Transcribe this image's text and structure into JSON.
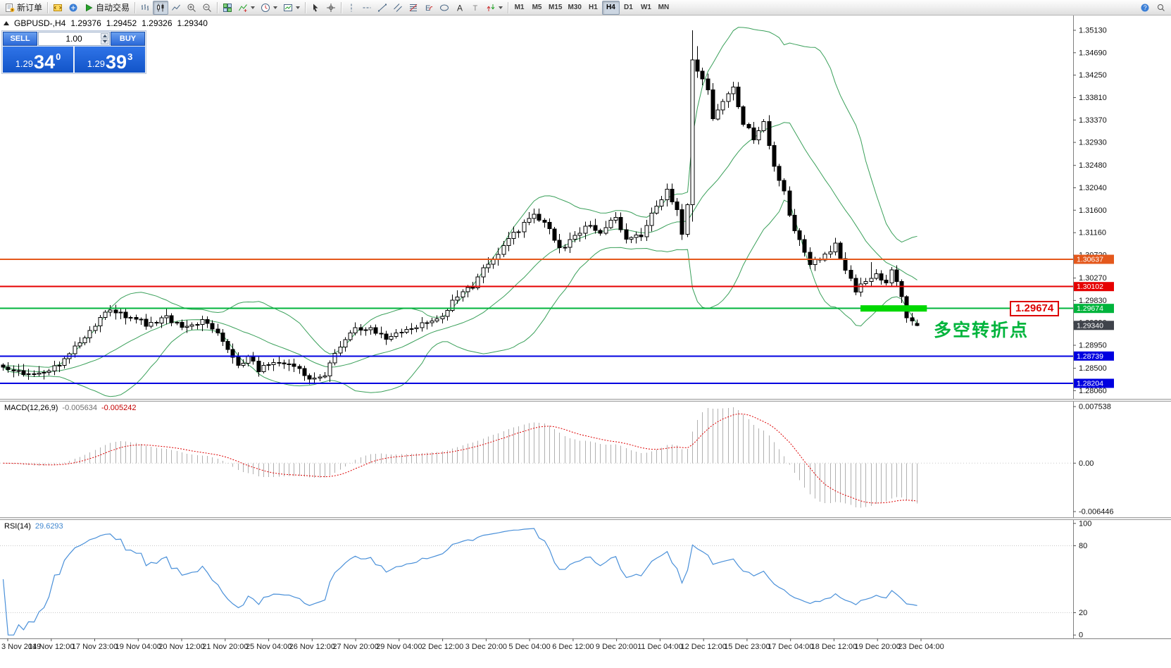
{
  "toolbar": {
    "groups": [
      {
        "items": [
          {
            "name": "new-order-button",
            "icon": "new-order-icon",
            "label": "新订单"
          }
        ]
      },
      {
        "items": [
          {
            "name": "metaeditor-button",
            "icon": "metaeditor-icon"
          },
          {
            "name": "market-button",
            "icon": "market-icon"
          },
          {
            "name": "autotrading-button",
            "icon": "autotrading-icon",
            "label": "自动交易"
          }
        ]
      },
      {
        "items": [
          {
            "name": "bars-mode-button",
            "icon": "bars-chart-icon"
          },
          {
            "name": "candles-mode-button",
            "icon": "candles-chart-icon",
            "active": true
          },
          {
            "name": "line-mode-button",
            "icon": "line-chart-icon"
          },
          {
            "name": "zoom-in-button",
            "icon": "zoom-in-icon"
          },
          {
            "name": "zoom-out-button",
            "icon": "zoom-out-icon"
          }
        ]
      },
      {
        "items": [
          {
            "name": "tile-windows-button",
            "icon": "tile-windows-icon"
          },
          {
            "name": "indicators-button",
            "icon": "indicators-icon",
            "dropdown": true
          },
          {
            "name": "periods-button",
            "icon": "periods-icon",
            "dropdown": true
          },
          {
            "name": "templates-button",
            "icon": "templates-icon",
            "dropdown": true
          }
        ]
      },
      {
        "items": [
          {
            "name": "cursor-button",
            "icon": "cursor-icon"
          },
          {
            "name": "crosshair-button",
            "icon": "crosshair-icon"
          }
        ]
      },
      {
        "items": [
          {
            "name": "vertical-line-button",
            "icon": "vertical-line-icon"
          },
          {
            "name": "horizontal-line-button",
            "icon": "horizontal-line-icon"
          },
          {
            "name": "trendline-button",
            "icon": "trendline-icon"
          },
          {
            "name": "channel-button",
            "icon": "channel-icon"
          },
          {
            "name": "fibonacci-button",
            "icon": "fibonacci-icon"
          },
          {
            "name": "elliott-wave-button",
            "icon": "elliott-icon"
          },
          {
            "name": "shapes-button",
            "icon": "shapes-icon"
          },
          {
            "name": "text-button",
            "icon": "text-icon"
          },
          {
            "name": "label-button",
            "icon": "label-icon"
          },
          {
            "name": "arrows-button",
            "icon": "arrows-icon",
            "dropdown": true
          }
        ]
      },
      {
        "items": [
          {
            "name": "tf-m1-button",
            "tf": "M1"
          },
          {
            "name": "tf-m5-button",
            "tf": "M5"
          },
          {
            "name": "tf-m15-button",
            "tf": "M15"
          },
          {
            "name": "tf-m30-button",
            "tf": "M30"
          },
          {
            "name": "tf-h1-button",
            "tf": "H1"
          },
          {
            "name": "tf-h4-button",
            "tf": "H4",
            "active": true
          },
          {
            "name": "tf-d1-button",
            "tf": "D1"
          },
          {
            "name": "tf-w1-button",
            "tf": "W1"
          },
          {
            "name": "tf-mn-button",
            "tf": "MN"
          }
        ]
      }
    ],
    "right_items": [
      {
        "name": "help-button",
        "icon": "help-icon"
      },
      {
        "name": "search-button",
        "icon": "search-icon"
      }
    ]
  },
  "symbol_bar": {
    "title": "GBPUSD-,H4",
    "open": "1.29376",
    "high": "1.29452",
    "low": "1.29326",
    "close": "1.29340"
  },
  "trade_panel": {
    "sell_label": "SELL",
    "buy_label": "BUY",
    "volume": "1.00",
    "bid_prefix": "1.29",
    "bid_big": "34",
    "bid_sup": "0",
    "ask_prefix": "1.29",
    "ask_big": "39",
    "ask_sup": "3"
  },
  "annotation": {
    "callout": "1.29674",
    "note": "多空转折点",
    "note_color": "#00b43c"
  },
  "chart_data": {
    "type": "candlestick",
    "title": "GBPUSD-,H4",
    "bars": 180,
    "noise": 0.0011,
    "waypoints": [
      [
        0,
        1.2853
      ],
      [
        3,
        1.2843
      ],
      [
        7,
        1.2836
      ],
      [
        11,
        1.286
      ],
      [
        14,
        1.2892
      ],
      [
        18,
        1.2934
      ],
      [
        21,
        1.2966
      ],
      [
        24,
        1.295
      ],
      [
        28,
        1.2938
      ],
      [
        32,
        1.2948
      ],
      [
        36,
        1.2928
      ],
      [
        39,
        1.2946
      ],
      [
        43,
        1.2904
      ],
      [
        46,
        1.2852
      ],
      [
        48,
        1.2872
      ],
      [
        50,
        1.2848
      ],
      [
        54,
        1.2864
      ],
      [
        58,
        1.2846
      ],
      [
        61,
        1.2826
      ],
      [
        63,
        1.284
      ],
      [
        65,
        1.2882
      ],
      [
        68,
        1.2922
      ],
      [
        72,
        1.2932
      ],
      [
        75,
        1.2906
      ],
      [
        78,
        1.2922
      ],
      [
        81,
        1.293
      ],
      [
        86,
        1.2956
      ],
      [
        89,
        1.2992
      ],
      [
        92,
        1.3012
      ],
      [
        94,
        1.3042
      ],
      [
        97,
        1.3072
      ],
      [
        99,
        1.3102
      ],
      [
        102,
        1.3132
      ],
      [
        104,
        1.3156
      ],
      [
        107,
        1.3118
      ],
      [
        109,
        1.3082
      ],
      [
        112,
        1.3108
      ],
      [
        114,
        1.3132
      ],
      [
        117,
        1.3118
      ],
      [
        120,
        1.3146
      ],
      [
        122,
        1.3106
      ],
      [
        125,
        1.3112
      ],
      [
        127,
        1.3152
      ],
      [
        130,
        1.32
      ],
      [
        132,
        1.3156
      ],
      [
        133,
        1.311
      ],
      [
        134,
        1.3172
      ],
      [
        135,
        1.346
      ],
      [
        136,
        1.3438
      ],
      [
        138,
        1.3392
      ],
      [
        139,
        1.3342
      ],
      [
        141,
        1.3372
      ],
      [
        143,
        1.3405
      ],
      [
        145,
        1.3332
      ],
      [
        147,
        1.3302
      ],
      [
        149,
        1.3332
      ],
      [
        151,
        1.3242
      ],
      [
        153,
        1.3195
      ],
      [
        154,
        1.3152
      ],
      [
        156,
        1.3098
      ],
      [
        158,
        1.3052
      ],
      [
        161,
        1.3072
      ],
      [
        163,
        1.3092
      ],
      [
        165,
        1.3042
      ],
      [
        167,
        1.3002
      ],
      [
        169,
        1.3022
      ],
      [
        171,
        1.3032
      ],
      [
        173,
        1.3012
      ],
      [
        174,
        1.3042
      ],
      [
        176,
        1.2992
      ],
      [
        177,
        1.2946
      ],
      [
        179,
        1.2934
      ]
    ],
    "special_candles": [
      {
        "i": 61,
        "low": 1.2821
      },
      {
        "i": 130,
        "high": 1.3212
      },
      {
        "i": 135,
        "high": 1.3513,
        "low": 1.3138
      },
      {
        "i": 136,
        "high": 1.3482
      },
      {
        "i": 170,
        "high": 1.3058
      },
      {
        "i": 179,
        "open": 1.29376,
        "high": 1.29452,
        "low": 1.29326,
        "close": 1.2934
      }
    ],
    "bollinger": {
      "period": 20,
      "deviation": 2,
      "color": "#3aa05a"
    },
    "price_axis": {
      "min": 1.279,
      "max": 1.3542,
      "ticks": [
        "1.35130",
        "1.34690",
        "1.34250",
        "1.33810",
        "1.33370",
        "1.32930",
        "1.32480",
        "1.32040",
        "1.31600",
        "1.31160",
        "1.30720",
        "1.30270",
        "1.29830",
        "1.29390",
        "1.28950",
        "1.28500",
        "1.28060"
      ]
    },
    "hlines": [
      {
        "price": 1.30637,
        "label": "1.30637",
        "color": "#e4581c"
      },
      {
        "price": 1.30102,
        "label": "1.30102",
        "color": "#e60000"
      },
      {
        "price": 1.29674,
        "label": "1.29674",
        "color": "#00b43c"
      },
      {
        "price": 1.28739,
        "label": "1.28739",
        "color": "#0000e0"
      },
      {
        "price": 1.28204,
        "label": "1.28204",
        "color": "#0000e0"
      }
    ],
    "current_price": {
      "value": 1.2934,
      "label": "1.29340",
      "color": "#3f434b"
    },
    "highlight": {
      "price": 1.29674,
      "from_bar": 168,
      "to_bar": 181,
      "color": "#00d800",
      "thickness": 9
    },
    "macd": {
      "label": "MACD(12,26,9)",
      "value_main": "-0.005634",
      "value_signal": "-0.005242",
      "fast": 12,
      "slow": 26,
      "signal": 9,
      "histogram_color": "#b0b0b0",
      "signal_color": "#dd0000",
      "axis_labels": [
        "0.007538",
        "0.00",
        "-0.006446"
      ]
    },
    "rsi": {
      "label": "RSI(14)",
      "value": "29.6293",
      "period": 14,
      "color": "#4a90d9",
      "levels": [
        80,
        20
      ],
      "axis_labels": [
        "100",
        "80",
        "20",
        "0"
      ]
    },
    "time_labels": [
      "3 Nov 2019",
      "14 Nov 12:00",
      "17 Nov 23:00",
      "19 Nov 04:00",
      "20 Nov 12:00",
      "21 Nov 20:00",
      "25 Nov 04:00",
      "26 Nov 12:00",
      "27 Nov 20:00",
      "29 Nov 04:00",
      "2 Dec 12:00",
      "3 Dec 20:00",
      "5 Dec 04:00",
      "6 Dec 12:00",
      "9 Dec 20:00",
      "11 Dec 04:00",
      "12 Dec 12:00",
      "15 Dec 23:00",
      "17 Dec 04:00",
      "18 Dec 12:00",
      "19 Dec 20:00",
      "23 Dec 04:00"
    ]
  }
}
